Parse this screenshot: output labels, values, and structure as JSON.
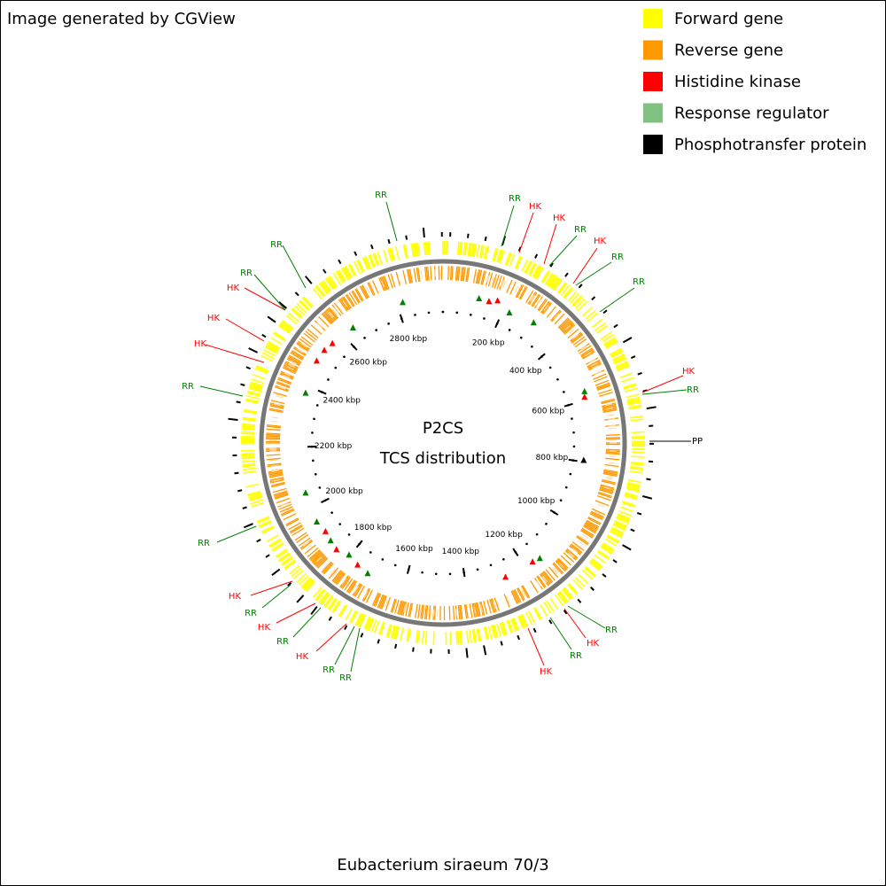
{
  "header": {
    "credit": "Image generated by CGView"
  },
  "legend": [
    {
      "text": "Forward gene",
      "color": "#ffff00"
    },
    {
      "text": "Reverse gene",
      "color": "#ff9900"
    },
    {
      "text": "Histidine kinase",
      "color": "#ff0000"
    },
    {
      "text": "Response regulator",
      "color": "#80c080"
    },
    {
      "text": "Phosphotransfer protein",
      "color": "#000000"
    }
  ],
  "center": {
    "title": "P2CS",
    "subtitle": "TCS distribution"
  },
  "scale": {
    "ticks": [
      {
        "value": 200,
        "label": "200 kbp"
      },
      {
        "value": 400,
        "label": "400 kbp"
      },
      {
        "value": 600,
        "label": "600 kbp"
      },
      {
        "value": 800,
        "label": "800 kbp"
      },
      {
        "value": 1000,
        "label": "1000 kbp"
      },
      {
        "value": 1200,
        "label": "1200 kbp"
      },
      {
        "value": 1400,
        "label": "1400 kbp"
      },
      {
        "value": 1600,
        "label": "1600 kbp"
      },
      {
        "value": 1800,
        "label": "1800 kbp"
      },
      {
        "value": 2000,
        "label": "2000 kbp"
      },
      {
        "value": 2200,
        "label": "2200 kbp"
      },
      {
        "value": 2400,
        "label": "2400 kbp"
      },
      {
        "value": 2600,
        "label": "2600 kbp"
      },
      {
        "value": 2800,
        "label": "2800 kbp"
      }
    ]
  },
  "feature_labels": [
    {
      "text": "RR",
      "color": "#008000"
    },
    {
      "text": "RR",
      "color": "#008000"
    },
    {
      "text": "HK",
      "color": "#ff0000"
    },
    {
      "text": "HK",
      "color": "#ff0000"
    },
    {
      "text": "RR",
      "color": "#008000"
    },
    {
      "text": "HK",
      "color": "#ff0000"
    },
    {
      "text": "RR",
      "color": "#008000"
    },
    {
      "text": "RR",
      "color": "#008000"
    },
    {
      "text": "HK",
      "color": "#ff0000"
    },
    {
      "text": "RR",
      "color": "#008000"
    },
    {
      "text": "PP",
      "color": "#000000"
    },
    {
      "text": "RR",
      "color": "#008000"
    },
    {
      "text": "HK",
      "color": "#ff0000"
    },
    {
      "text": "RR",
      "color": "#008000"
    },
    {
      "text": "HK",
      "color": "#ff0000"
    },
    {
      "text": "RR",
      "color": "#008000"
    },
    {
      "text": "HK",
      "color": "#ff0000"
    },
    {
      "text": "RR",
      "color": "#008000"
    },
    {
      "text": "HK",
      "color": "#ff0000"
    },
    {
      "text": "RR",
      "color": "#008000"
    },
    {
      "text": "HK",
      "color": "#ff0000"
    },
    {
      "text": "RR",
      "color": "#008000"
    },
    {
      "text": "RR",
      "color": "#008000"
    },
    {
      "text": "RR",
      "color": "#008000"
    },
    {
      "text": "HK",
      "color": "#ff0000"
    },
    {
      "text": "HK",
      "color": "#ff0000"
    },
    {
      "text": "HK",
      "color": "#ff0000"
    },
    {
      "text": "RR",
      "color": "#008000"
    },
    {
      "text": "RR",
      "color": "#008000"
    }
  ],
  "footer": {
    "organism": "Eubacterium siraeum 70/3"
  }
}
